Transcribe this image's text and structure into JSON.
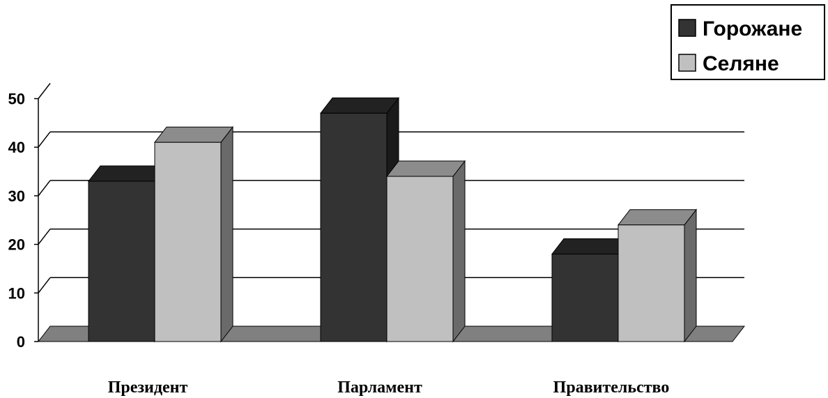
{
  "chart_data": {
    "type": "bar",
    "categories": [
      "Президент",
      "Парламент",
      "Правительство"
    ],
    "series": [
      {
        "name": "Горожане",
        "values": [
          33,
          47,
          18
        ]
      },
      {
        "name": "Селяне",
        "values": [
          41,
          34,
          24
        ]
      }
    ],
    "ylim": [
      0,
      50
    ],
    "yticks": [
      "0",
      "10",
      "20",
      "30",
      "40",
      "50"
    ],
    "title": "",
    "xlabel": "",
    "ylabel": "",
    "grid": true,
    "legend_position": "top-right",
    "style": "3d-column",
    "colors": {
      "series_front": [
        "#333333",
        "#c0c0c0"
      ],
      "series_top": [
        "#222222",
        "#8c8c8c"
      ],
      "series_side": [
        "#1a1a1a",
        "#6a6a6a"
      ],
      "floor": "#808080",
      "grid": "#000000"
    }
  }
}
